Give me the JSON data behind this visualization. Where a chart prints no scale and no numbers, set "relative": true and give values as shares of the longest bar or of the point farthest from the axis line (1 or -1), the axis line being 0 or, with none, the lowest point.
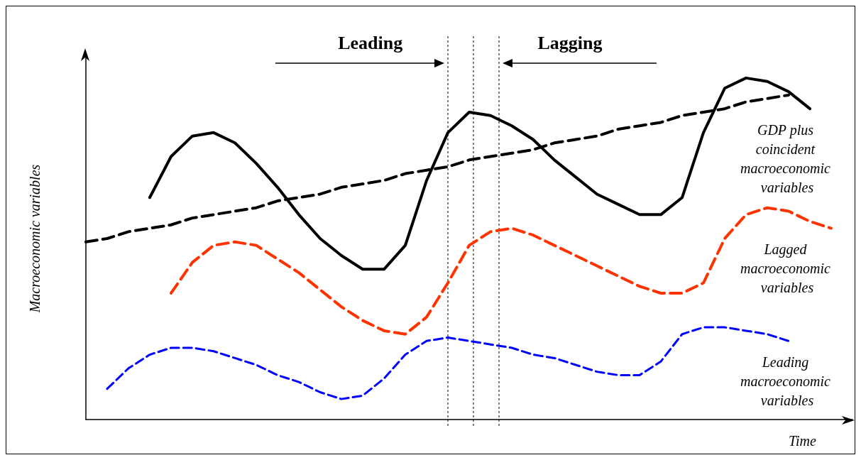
{
  "chart_data": {
    "type": "line",
    "relative": true,
    "xlabel": "Time",
    "ylabel": "Macroeconomic variables",
    "legend": false,
    "grid": false,
    "marker": "none",
    "categories": [
      null,
      null,
      null,
      null,
      null,
      null,
      null,
      null,
      null,
      null,
      null,
      null,
      null,
      null,
      null,
      null,
      null,
      null,
      null,
      null,
      null,
      null,
      null,
      null,
      null,
      null,
      null,
      null,
      null,
      null,
      null,
      null,
      null,
      null,
      null,
      null,
      null
    ],
    "series": [
      {
        "name": "GDP plus coincident macroeconomic variables",
        "color": "#000000",
        "line_style": "solid",
        "values": [
          null,
          null,
          null,
          0.65,
          0.77,
          0.83,
          0.84,
          0.81,
          0.75,
          0.68,
          0.6,
          0.53,
          0.48,
          0.44,
          0.44,
          0.51,
          0.7,
          0.84,
          0.9,
          0.89,
          0.86,
          0.82,
          0.76,
          0.71,
          0.66,
          0.63,
          0.6,
          0.6,
          0.65,
          0.84,
          0.97,
          1,
          0.99,
          0.96,
          0.91,
          null,
          null
        ]
      },
      {
        "color": "#000000",
        "line_style": "dashed",
        "values": [
          0.52,
          0.53,
          0.55,
          0.56,
          0.57,
          0.59,
          0.6,
          0.61,
          0.62,
          0.64,
          0.65,
          0.66,
          0.68,
          0.69,
          0.7,
          0.72,
          0.73,
          0.74,
          0.76,
          0.77,
          0.78,
          0.79,
          0.81,
          0.82,
          0.83,
          0.85,
          0.86,
          0.87,
          0.89,
          0.9,
          0.91,
          0.93,
          0.94,
          0.95,
          null,
          null,
          null
        ]
      },
      {
        "name": "Lagged macroeconomic variables",
        "color": "#ff3300",
        "line_style": "dashed",
        "values": [
          null,
          null,
          null,
          null,
          0.37,
          0.46,
          0.51,
          0.52,
          0.51,
          0.47,
          0.43,
          0.38,
          0.33,
          0.29,
          0.26,
          0.25,
          0.3,
          0.4,
          0.51,
          0.55,
          0.56,
          0.54,
          0.51,
          0.48,
          0.45,
          0.42,
          0.39,
          0.37,
          0.37,
          0.4,
          0.53,
          0.6,
          0.62,
          0.61,
          0.58,
          0.56,
          null
        ]
      },
      {
        "name": "Leading macroeconomic variables",
        "color": "#0000ff",
        "line_style": "dashed",
        "values": [
          null,
          0.09,
          0.15,
          0.19,
          0.21,
          0.21,
          0.2,
          0.18,
          0.16,
          0.13,
          0.11,
          0.08,
          0.06,
          0.07,
          0.12,
          0.19,
          0.23,
          0.24,
          0.23,
          0.22,
          0.21,
          0.19,
          0.18,
          0.16,
          0.14,
          0.13,
          0.13,
          0.17,
          0.25,
          0.27,
          0.27,
          0.26,
          0.25,
          0.23,
          null,
          null,
          null
        ]
      }
    ],
    "annotations": [
      "Leading",
      "Lagging"
    ]
  }
}
